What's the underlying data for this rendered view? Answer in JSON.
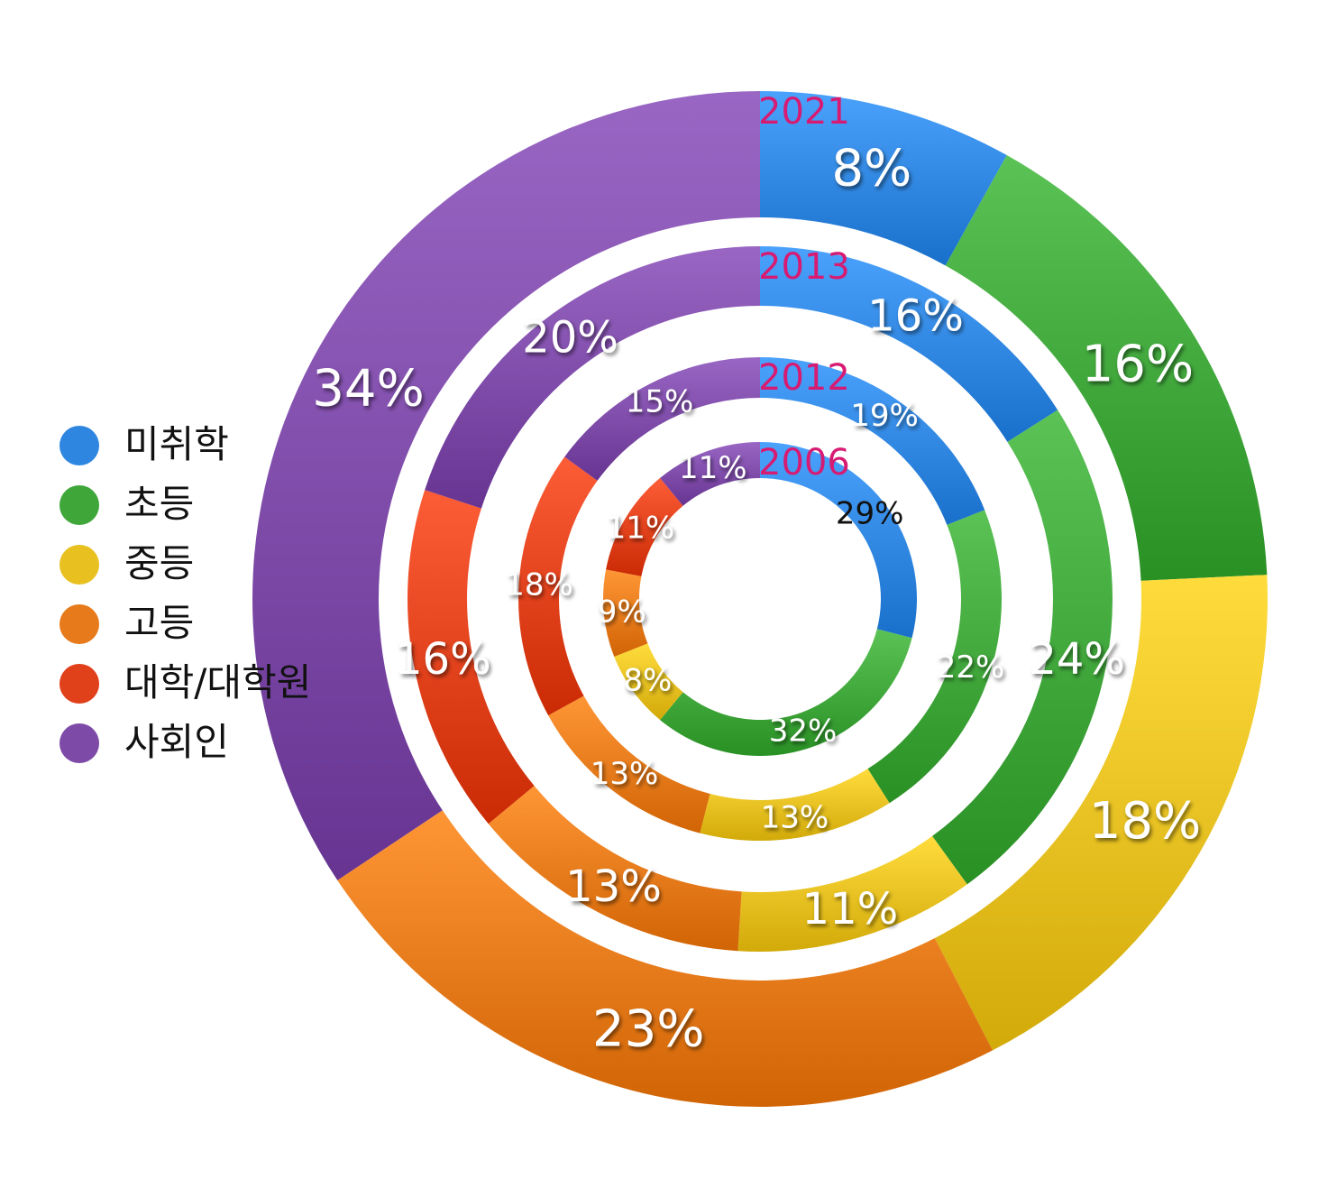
{
  "chart_data": {
    "type": "donut",
    "categories": [
      "미취학",
      "초등",
      "중등",
      "고등",
      "대학/대학원",
      "사회인"
    ],
    "colors": {
      "미취학": "#2f86e0",
      "초등": "#3fa63a",
      "중등": "#e8c020",
      "고등": "#e77a1a",
      "대학/대학원": "#e0401a",
      "사회인": "#7d4aa8"
    },
    "year_color": "#d81b72",
    "series": [
      {
        "name": "2006",
        "values": [
          29,
          32,
          8,
          9,
          11,
          11
        ],
        "labels": [
          "29%",
          "32%",
          "8%",
          "9%",
          "11%",
          "11%"
        ]
      },
      {
        "name": "2012",
        "values": [
          19,
          22,
          13,
          13,
          18,
          15
        ],
        "labels": [
          "19%",
          "22%",
          "13%",
          "13%",
          "18%",
          "15%"
        ]
      },
      {
        "name": "2013",
        "values": [
          16,
          24,
          11,
          13,
          16,
          20
        ],
        "labels": [
          "16%",
          "24%",
          "11%",
          "13%",
          "16%",
          "20%"
        ]
      },
      {
        "name": "2021",
        "values": [
          8,
          16,
          18,
          23,
          0,
          34
        ],
        "labels": [
          "8%",
          "16%",
          "18%",
          "23%",
          "",
          "34%"
        ]
      }
    ],
    "legend_position": "left"
  },
  "legend": {
    "items": [
      {
        "label": "미취학",
        "color": "#2f86e0"
      },
      {
        "label": "초등",
        "color": "#3fa63a"
      },
      {
        "label": "중등",
        "color": "#e8c020"
      },
      {
        "label": "고등",
        "color": "#e77a1a"
      },
      {
        "label": "대학/대학원",
        "color": "#e0401a"
      },
      {
        "label": "사회인",
        "color": "#7d4aa8"
      }
    ]
  }
}
